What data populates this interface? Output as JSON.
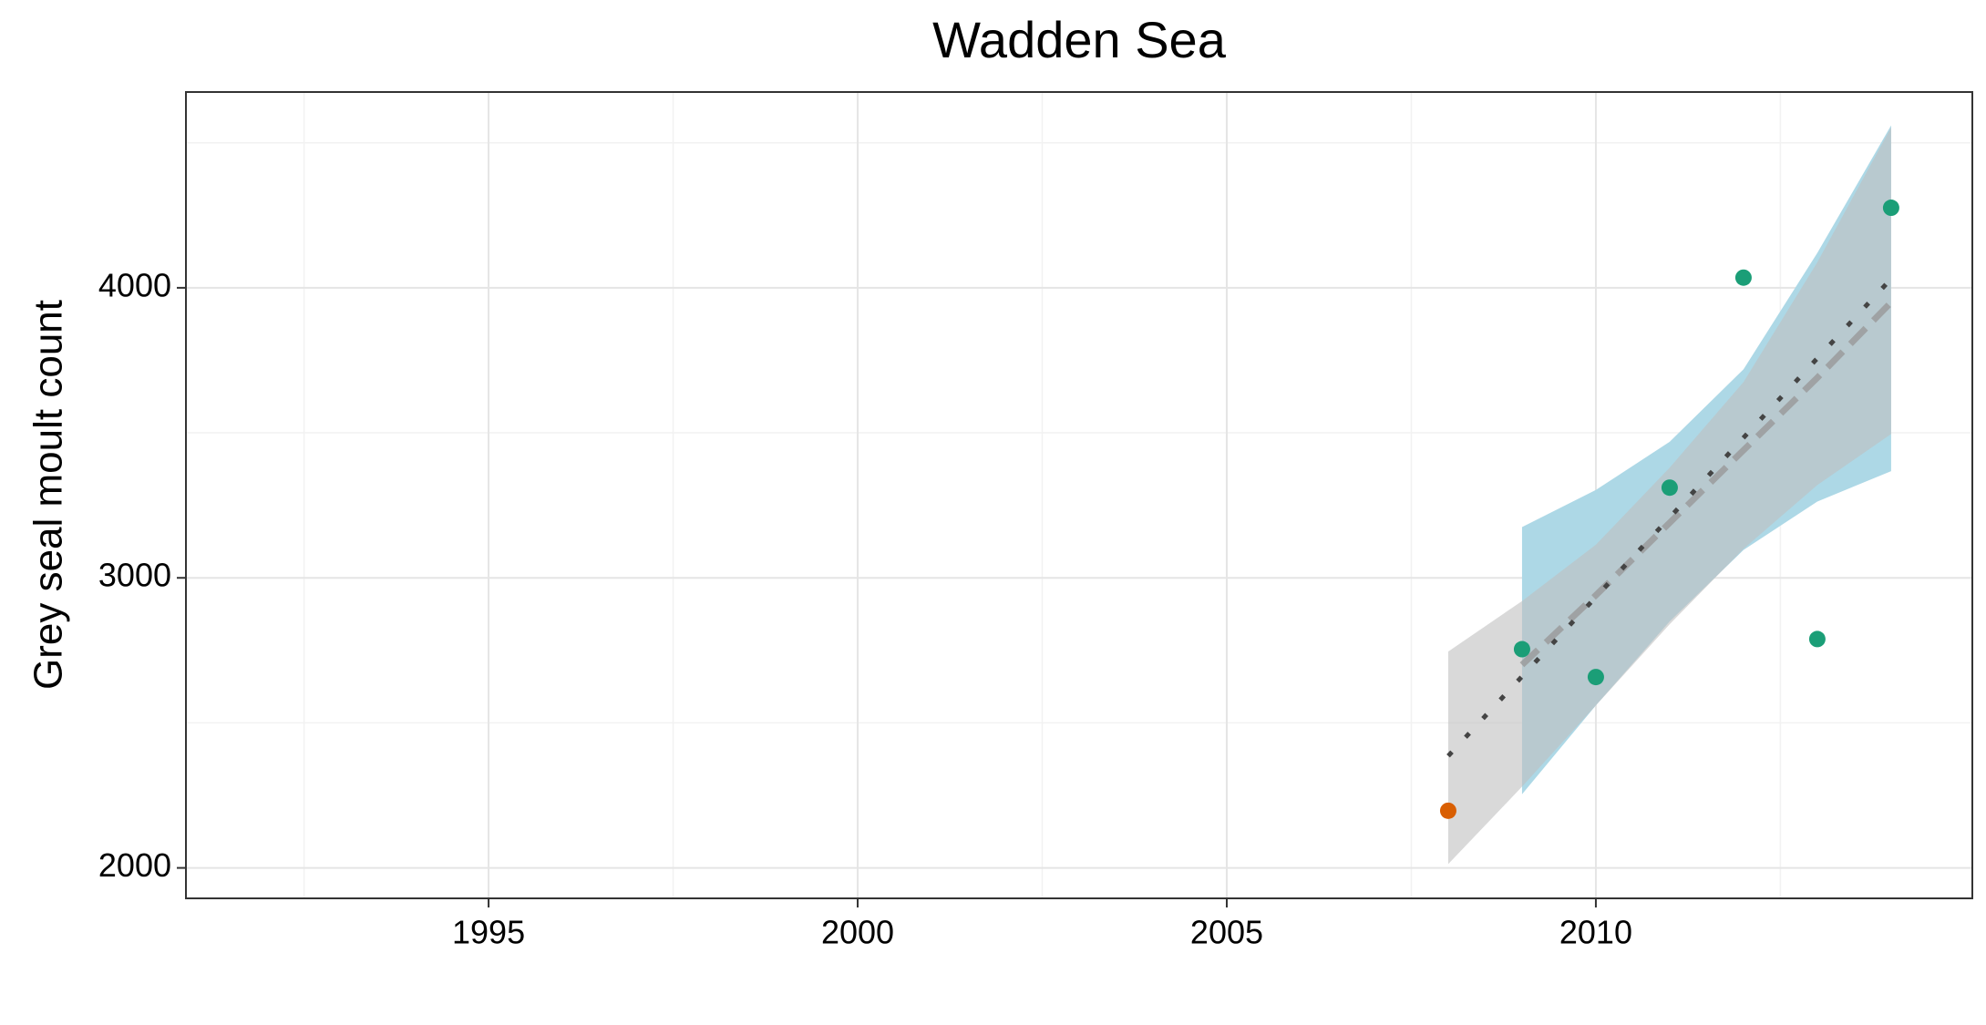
{
  "chart_data": {
    "type": "line",
    "title": "Wadden Sea",
    "y_label": "Grey seal moult count",
    "xlim": [
      1990.9,
      2015.1
    ],
    "ylim": [
      1895,
      4675
    ],
    "xticks": [
      1995,
      2000,
      2005,
      2010
    ],
    "yticks": [
      2000,
      3000,
      4000
    ],
    "minor_xgrid": [
      1992.5,
      1997.5,
      2002.5,
      2007.5,
      2012.5
    ],
    "minor_ygrid": [
      2500,
      3500,
      4500
    ],
    "grid": true,
    "series": [
      {
        "type": "ribbon",
        "color": "#add8e6",
        "x": [
          2009,
          2010,
          2011,
          2012,
          2013,
          2014
        ],
        "upper": [
          3175,
          3303,
          3469,
          3719,
          4120,
          4560
        ],
        "lower": [
          2254,
          2560,
          2850,
          3096,
          3263,
          3368
        ]
      },
      {
        "type": "ribbon",
        "color": "#bfbfbf",
        "x": [
          2008,
          2009,
          2010,
          2011,
          2012,
          2013,
          2014
        ],
        "upper": [
          2746,
          2920,
          3114,
          3380,
          3675,
          4088,
          4553
        ],
        "lower": [
          2013,
          2280,
          2560,
          2840,
          3100,
          3320,
          3496
        ]
      },
      {
        "type": "dashed",
        "color": "#999999",
        "x": [
          2009,
          2010,
          2011,
          2012,
          2013,
          2014
        ],
        "values": [
          2700,
          2940,
          3190,
          3440,
          3690,
          3950
        ]
      },
      {
        "type": "dotted",
        "color": "#444444",
        "x": [
          2008,
          2009,
          2010,
          2011,
          2012,
          2013,
          2014
        ],
        "values": [
          2386,
          2660,
          2934,
          3208,
          3483,
          3757,
          4031
        ]
      },
      {
        "type": "scatter",
        "x": [
          2008,
          2009,
          2010,
          2011,
          2012,
          2013,
          2014
        ],
        "values": [
          2197,
          2754,
          2658,
          3311,
          4035,
          2789,
          4276
        ],
        "colors": [
          "#d95f02",
          "#1b9e77",
          "#1b9e77",
          "#1b9e77",
          "#1b9e77",
          "#1b9e77",
          "#1b9e77"
        ]
      }
    ]
  }
}
